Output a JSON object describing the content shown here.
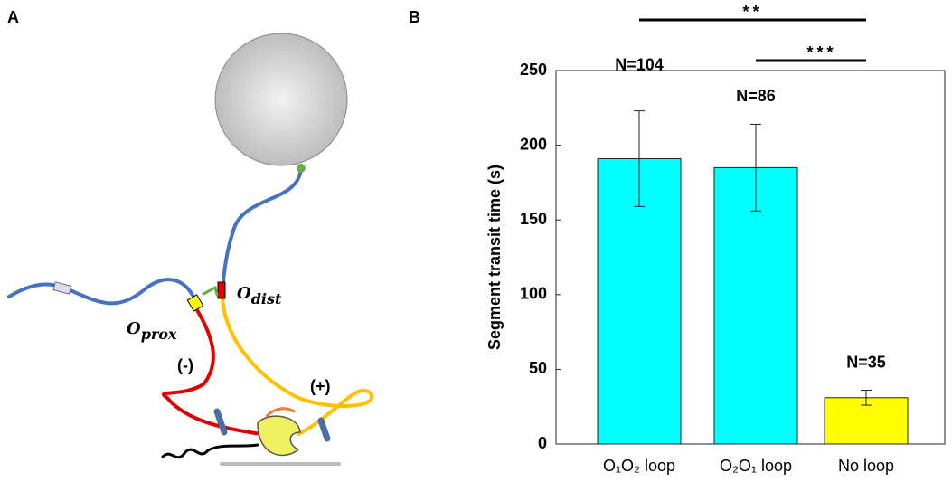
{
  "panel_labels": [
    "A",
    "B"
  ],
  "diagram": {
    "o_prox": {
      "main": "O",
      "sub": "prox"
    },
    "o_dist": {
      "main": "O",
      "sub": "dist"
    },
    "minus": "(-)",
    "plus": "(+)"
  },
  "chart_data": {
    "type": "bar",
    "ylabel": "Segment  transit  time (s)",
    "categories": [
      "O₁O₂ loop",
      "O₂O₁ loop",
      "No loop"
    ],
    "values": [
      191,
      185,
      31
    ],
    "errors": [
      32,
      29,
      5
    ],
    "colors": [
      "#00ffff",
      "#00ffff",
      "#ffff00"
    ],
    "annotations": [
      "N=104",
      "N=86",
      "N=35"
    ],
    "significance": [
      "**",
      "***"
    ],
    "ylim": [
      0,
      250
    ],
    "yticks": [
      0,
      50,
      100,
      150,
      200,
      250
    ]
  }
}
